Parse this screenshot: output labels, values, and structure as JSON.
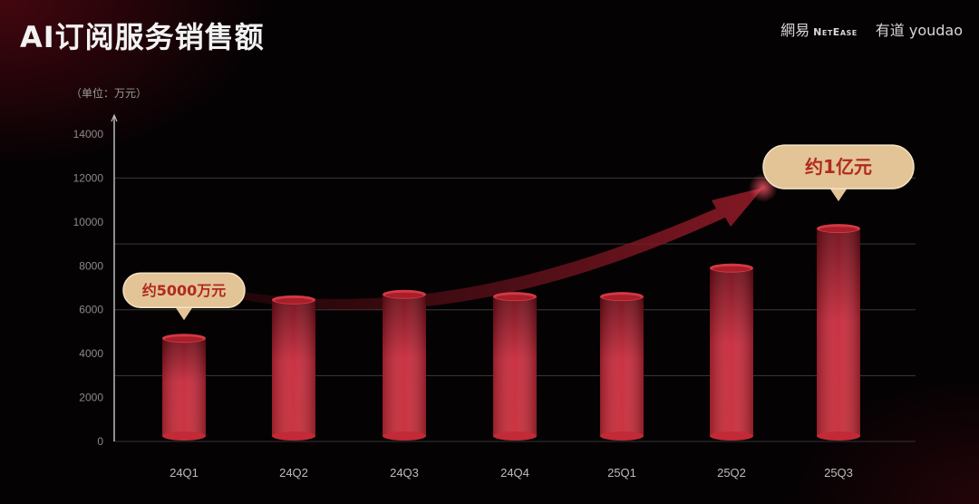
{
  "header": {
    "title": "AI订阅服务销售额"
  },
  "logos": {
    "netease_cn": "網易",
    "netease_en": "NetEase",
    "youdao_cn": "有道",
    "youdao_en": "youdao"
  },
  "chart_data": {
    "type": "bar",
    "title": "AI订阅服务销售额",
    "unit_label": "（单位：万元）",
    "xlabel": "",
    "ylabel": "",
    "categories": [
      "24Q1",
      "24Q2",
      "24Q3",
      "24Q4",
      "25Q1",
      "25Q2",
      "25Q3"
    ],
    "values": [
      4700,
      6450,
      6700,
      6600,
      6600,
      7900,
      9700
    ],
    "ylim": [
      0,
      14000
    ],
    "yticks": [
      0,
      2000,
      4000,
      6000,
      8000,
      10000,
      12000,
      14000
    ],
    "gridlines": [
      3000,
      6000,
      9000,
      12000
    ],
    "grid": true,
    "bar_style": "3D red cylinders",
    "colors": {
      "bar": "#c8283a",
      "bar_dark": "#6e0c17",
      "callout_bg": "#e3c497",
      "callout_text": "#b02a20",
      "arrow": "#7a1420"
    },
    "annotations": [
      {
        "category": "24Q1",
        "text": "约5000万元"
      },
      {
        "category": "25Q3",
        "text": "约1亿元"
      }
    ],
    "trend_arrow": "upward curved arrow from 24Q1 to 25Q3"
  }
}
